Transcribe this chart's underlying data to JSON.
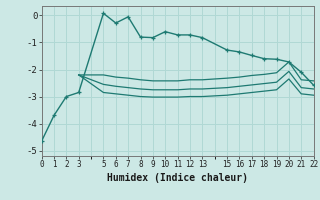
{
  "xlabel": "Humidex (Indice chaleur)",
  "background_color": "#cce8e5",
  "grid_color": "#b0d8d4",
  "line_color": "#1e7a72",
  "xlim": [
    0,
    22
  ],
  "ylim": [
    -5.2,
    0.35
  ],
  "x_ticks": [
    0,
    1,
    2,
    3,
    5,
    6,
    7,
    8,
    9,
    10,
    11,
    12,
    13,
    15,
    16,
    17,
    18,
    19,
    20,
    21,
    22
  ],
  "x_tick_labels": [
    "0",
    "1",
    "2",
    "3",
    "5",
    "6",
    "7",
    "8",
    "9",
    "10",
    "11",
    "12",
    "13",
    "15",
    "16",
    "17",
    "18",
    "19",
    "20",
    "21",
    "22"
  ],
  "y_ticks": [
    0,
    -1,
    -2,
    -3,
    -4,
    -5
  ],
  "curve1_x": [
    0,
    1,
    2,
    3,
    5,
    6,
    7,
    8,
    9,
    10,
    11,
    12,
    13,
    15,
    16,
    17,
    18,
    19,
    20,
    21,
    22
  ],
  "curve1_y": [
    -4.65,
    -3.7,
    -3.0,
    -2.85,
    0.08,
    -0.28,
    -0.05,
    -0.8,
    -0.82,
    -0.6,
    -0.72,
    -0.72,
    -0.82,
    -1.28,
    -1.35,
    -1.48,
    -1.6,
    -1.62,
    -1.72,
    -2.1,
    -2.58
  ],
  "curve2_x": [
    3,
    5,
    6,
    7,
    8,
    9,
    10,
    11,
    12,
    13,
    15,
    16,
    17,
    18,
    19,
    20,
    21,
    22
  ],
  "curve2_y": [
    -2.2,
    -2.2,
    -2.28,
    -2.32,
    -2.38,
    -2.42,
    -2.42,
    -2.42,
    -2.38,
    -2.38,
    -2.32,
    -2.28,
    -2.22,
    -2.18,
    -2.12,
    -1.72,
    -2.38,
    -2.42
  ],
  "curve3_x": [
    3,
    5,
    6,
    7,
    8,
    9,
    10,
    11,
    12,
    13,
    15,
    16,
    17,
    18,
    19,
    20,
    21,
    22
  ],
  "curve3_y": [
    -2.2,
    -2.55,
    -2.62,
    -2.67,
    -2.72,
    -2.75,
    -2.75,
    -2.75,
    -2.72,
    -2.72,
    -2.67,
    -2.62,
    -2.57,
    -2.52,
    -2.47,
    -2.07,
    -2.67,
    -2.72
  ],
  "curve4_x": [
    3,
    5,
    6,
    7,
    8,
    9,
    10,
    11,
    12,
    13,
    15,
    16,
    17,
    18,
    19,
    20,
    21,
    22
  ],
  "curve4_y": [
    -2.2,
    -2.85,
    -2.9,
    -2.95,
    -3.0,
    -3.02,
    -3.02,
    -3.02,
    -3.0,
    -3.0,
    -2.95,
    -2.9,
    -2.85,
    -2.8,
    -2.75,
    -2.35,
    -2.9,
    -2.95
  ]
}
